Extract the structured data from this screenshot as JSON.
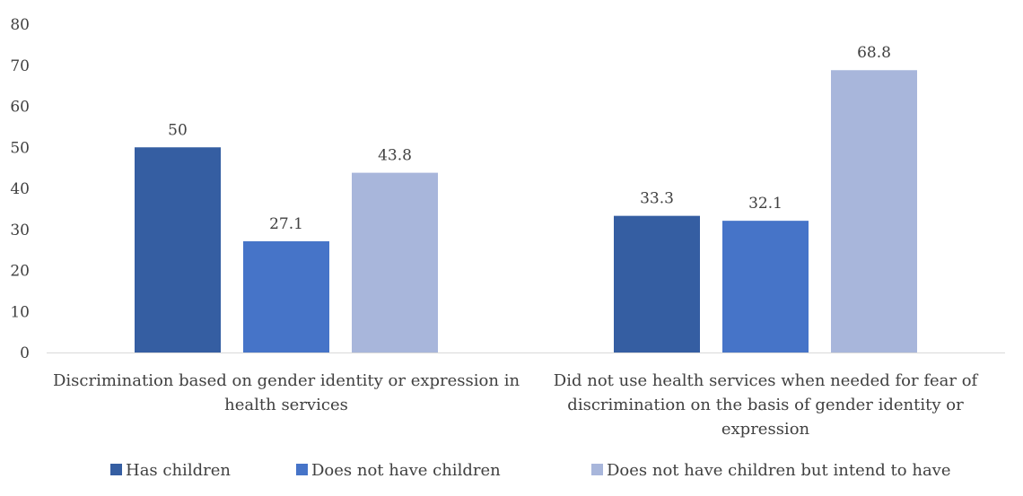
{
  "chart_data": {
    "type": "bar",
    "title": "",
    "xlabel": "",
    "ylabel": "",
    "ylim": [
      0,
      80
    ],
    "yticks": [
      0,
      10,
      20,
      30,
      40,
      50,
      60,
      70,
      80
    ],
    "grid": false,
    "legend_position": "bottom",
    "categories": [
      [
        "Discrimination based on gender identity or expression in",
        "health services"
      ],
      [
        "Did not use health services when needed for fear of",
        "discrimination on the basis of gender identity or",
        "expression"
      ]
    ],
    "series": [
      {
        "name": "Has children",
        "color": "#355ea2",
        "values": [
          50,
          33.3
        ],
        "labels": [
          "50",
          "33.3"
        ]
      },
      {
        "name": "Does not have children",
        "color": "#4674c8",
        "values": [
          27.1,
          32.1
        ],
        "labels": [
          "27.1",
          "32.1"
        ]
      },
      {
        "name": "Does not have children but intend to have",
        "color": "#a8b6db",
        "values": [
          43.8,
          68.8
        ],
        "labels": [
          "43.8",
          "68.8"
        ]
      }
    ]
  }
}
